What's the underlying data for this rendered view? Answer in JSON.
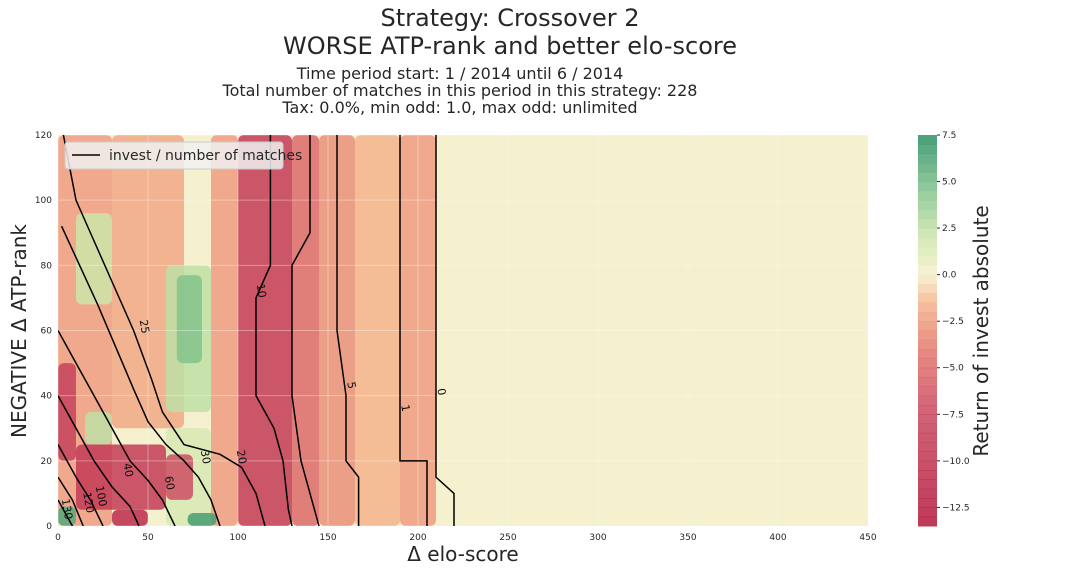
{
  "header": {
    "title_line1": "Strategy: Crossover 2",
    "title_line2": "WORSE ATP-rank and better elo-score",
    "subtitle_line1": "Time period start: 1 / 2014 until 6 / 2014",
    "subtitle_line2": "Total number of matches in this period in this strategy: 228",
    "subtitle_line3": "Tax: 0.0%, min odd: 1.0, max odd: unlimited"
  },
  "chart_data": {
    "type": "heatmap",
    "title": "Strategy: Crossover 2",
    "xlabel": "Δ elo-score",
    "ylabel": "NEGATIVE Δ ATP-rank",
    "xlim": [
      0,
      450
    ],
    "ylim": [
      0,
      120
    ],
    "x_ticks": [
      0,
      50,
      100,
      150,
      200,
      250,
      300,
      350,
      400,
      450
    ],
    "y_ticks": [
      0,
      20,
      40,
      60,
      80,
      100,
      120
    ],
    "grid": true,
    "legend": {
      "placement": "top-left",
      "entries": [
        "invest / number of matches"
      ]
    },
    "colorbar": {
      "label": "Return of invest absolute",
      "range": [
        -13.5,
        7.5
      ],
      "ticks": [
        7.5,
        5.0,
        2.5,
        0.0,
        -2.5,
        -5.0,
        -7.5,
        -10.0,
        -12.5
      ],
      "tick_labels": [
        "7.5",
        "5.0",
        "2.5",
        "0.0",
        "−2.5",
        "−5.0",
        "−7.5",
        "−10.0",
        "−12.5"
      ],
      "colormap": "RdYlGn"
    },
    "contour_labels": [
      {
        "text": "0",
        "x": 211,
        "y": 41
      },
      {
        "text": "1",
        "x": 191,
        "y": 36
      },
      {
        "text": "5",
        "x": 161,
        "y": 43
      },
      {
        "text": "10",
        "x": 111,
        "y": 72
      },
      {
        "text": "20",
        "x": 100,
        "y": 21
      },
      {
        "text": "25",
        "x": 46,
        "y": 61
      },
      {
        "text": "30",
        "x": 80,
        "y": 21
      },
      {
        "text": "40",
        "x": 37,
        "y": 17
      },
      {
        "text": "60",
        "x": 60,
        "y": 13
      },
      {
        "text": "100",
        "x": 22,
        "y": 9
      },
      {
        "text": "120",
        "x": 15,
        "y": 7
      },
      {
        "text": "130",
        "x": 3,
        "y": 5
      }
    ],
    "regions": [
      {
        "x0": 0,
        "x1": 30,
        "y0": 0,
        "y1": 120,
        "value": -2.5
      },
      {
        "x0": 30,
        "x1": 70,
        "y0": 30,
        "y1": 120,
        "value": -2.0
      },
      {
        "x0": 60,
        "x1": 85,
        "y0": 35,
        "y1": 80,
        "value": 2.5
      },
      {
        "x0": 66,
        "x1": 80,
        "y0": 50,
        "y1": 77,
        "value": 4.5
      },
      {
        "x0": 10,
        "x1": 30,
        "y0": 68,
        "y1": 96,
        "value": 2.0
      },
      {
        "x0": 85,
        "x1": 100,
        "y0": 0,
        "y1": 120,
        "value": -2.5
      },
      {
        "x0": 100,
        "x1": 130,
        "y0": 0,
        "y1": 120,
        "value": -9.0
      },
      {
        "x0": 130,
        "x1": 145,
        "y0": 0,
        "y1": 120,
        "value": -5.0
      },
      {
        "x0": 145,
        "x1": 165,
        "y0": 0,
        "y1": 120,
        "value": -3.0
      },
      {
        "x0": 165,
        "x1": 190,
        "y0": 0,
        "y1": 120,
        "value": -1.5
      },
      {
        "x0": 190,
        "x1": 210,
        "y0": 0,
        "y1": 120,
        "value": -2.5
      },
      {
        "x0": 210,
        "x1": 450,
        "y0": 0,
        "y1": 120,
        "value": 0.0
      },
      {
        "x0": 0,
        "x1": 10,
        "y0": 20,
        "y1": 50,
        "value": -8.0
      },
      {
        "x0": 10,
        "x1": 60,
        "y0": 5,
        "y1": 25,
        "value": -9.0
      },
      {
        "x0": 60,
        "x1": 85,
        "y0": 0,
        "y1": 30,
        "value": 1.5
      },
      {
        "x0": 60,
        "x1": 75,
        "y0": 8,
        "y1": 22,
        "value": -7.0
      },
      {
        "x0": 72,
        "x1": 88,
        "y0": 0,
        "y1": 4,
        "value": 6.5
      },
      {
        "x0": 0,
        "x1": 10,
        "y0": 0,
        "y1": 6,
        "value": 6.0
      },
      {
        "x0": 15,
        "x1": 30,
        "y0": 25,
        "y1": 35,
        "value": 2.5
      },
      {
        "x0": 30,
        "x1": 50,
        "y0": 0,
        "y1": 5,
        "value": -11.0
      }
    ]
  }
}
